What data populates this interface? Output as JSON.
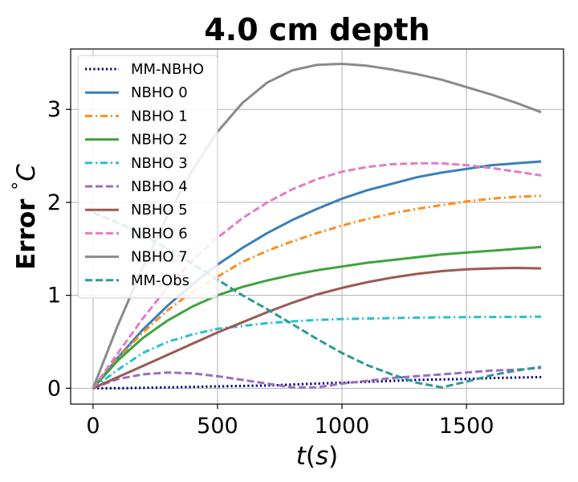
{
  "chart_data": {
    "type": "line",
    "title": "4.0 cm depth",
    "xlabel": "t (s)",
    "ylabel": "Error °C",
    "xlim": [
      -90,
      1890
    ],
    "ylim": [
      -0.17,
      3.65
    ],
    "xticks": [
      0,
      500,
      1000,
      1500
    ],
    "yticks": [
      0,
      1,
      2,
      3
    ],
    "xtick_labels": [
      "0",
      "500",
      "1000",
      "1500"
    ],
    "ytick_labels": [
      "0",
      "1",
      "2",
      "3"
    ],
    "grid": true,
    "legend_position": "upper-left",
    "x": [
      0,
      100,
      200,
      300,
      400,
      500,
      600,
      700,
      800,
      900,
      1000,
      1100,
      1200,
      1300,
      1400,
      1500,
      1600,
      1700,
      1800
    ],
    "series": [
      {
        "name": "MM-NBHO",
        "color": "#000080",
        "dash": "dotted",
        "values": [
          0.0,
          0.0,
          0.005,
          0.01,
          0.015,
          0.02,
          0.025,
          0.03,
          0.04,
          0.05,
          0.06,
          0.07,
          0.08,
          0.09,
          0.095,
          0.1,
          0.11,
          0.115,
          0.12
        ]
      },
      {
        "name": "NBHO 0",
        "color": "#3a7fba",
        "dash": "solid",
        "values": [
          0.0,
          0.33,
          0.63,
          0.89,
          1.12,
          1.33,
          1.51,
          1.67,
          1.81,
          1.93,
          2.04,
          2.13,
          2.2,
          2.27,
          2.32,
          2.36,
          2.4,
          2.42,
          2.44
        ]
      },
      {
        "name": "NBHO 1",
        "color": "#ff8c1f",
        "dash": "dashdot",
        "values": [
          0.0,
          0.32,
          0.6,
          0.84,
          1.04,
          1.2,
          1.36,
          1.48,
          1.58,
          1.67,
          1.75,
          1.82,
          1.88,
          1.93,
          1.97,
          2.01,
          2.04,
          2.06,
          2.07
        ]
      },
      {
        "name": "NBHO 2",
        "color": "#3fa33f",
        "dash": "solid",
        "values": [
          0.0,
          0.3,
          0.54,
          0.73,
          0.88,
          1.0,
          1.09,
          1.16,
          1.22,
          1.27,
          1.31,
          1.35,
          1.38,
          1.41,
          1.44,
          1.46,
          1.48,
          1.5,
          1.52
        ]
      },
      {
        "name": "NBHO 3",
        "color": "#26c0d2",
        "dash": "dashdot",
        "values": [
          0.0,
          0.2,
          0.38,
          0.5,
          0.58,
          0.64,
          0.67,
          0.7,
          0.72,
          0.735,
          0.745,
          0.75,
          0.755,
          0.76,
          0.763,
          0.765,
          0.767,
          0.768,
          0.77
        ]
      },
      {
        "name": "NBHO 4",
        "color": "#9a6fc2",
        "dash": "dashed",
        "values": [
          0.0,
          0.1,
          0.15,
          0.17,
          0.16,
          0.13,
          0.09,
          0.05,
          0.01,
          0.01,
          0.05,
          0.08,
          0.11,
          0.13,
          0.15,
          0.17,
          0.19,
          0.2,
          0.22
        ]
      },
      {
        "name": "NBHO 5",
        "color": "#9a5a52",
        "dash": "solid",
        "values": [
          0.0,
          0.12,
          0.24,
          0.36,
          0.48,
          0.6,
          0.71,
          0.82,
          0.92,
          1.01,
          1.08,
          1.14,
          1.19,
          1.23,
          1.26,
          1.28,
          1.29,
          1.295,
          1.29
        ]
      },
      {
        "name": "NBHO 6",
        "color": "#e47cc7",
        "dash": "dashed",
        "values": [
          0.0,
          0.38,
          0.75,
          1.09,
          1.38,
          1.62,
          1.83,
          2.0,
          2.14,
          2.25,
          2.33,
          2.38,
          2.41,
          2.42,
          2.42,
          2.4,
          2.37,
          2.33,
          2.29
        ]
      },
      {
        "name": "NBHO 7",
        "color": "#8a8a8a",
        "dash": "solid",
        "values": [
          0.0,
          0.68,
          1.3,
          1.86,
          2.35,
          2.76,
          3.07,
          3.29,
          3.42,
          3.48,
          3.49,
          3.47,
          3.43,
          3.38,
          3.32,
          3.24,
          3.16,
          3.07,
          2.97
        ]
      },
      {
        "name": "MM-Obs",
        "color": "#2a9a93",
        "dash": "dashed",
        "values": [
          1.89,
          1.78,
          1.65,
          1.5,
          1.34,
          1.17,
          1.0,
          0.85,
          0.69,
          0.53,
          0.38,
          0.25,
          0.15,
          0.06,
          0.01,
          0.07,
          0.14,
          0.19,
          0.23
        ]
      }
    ]
  }
}
